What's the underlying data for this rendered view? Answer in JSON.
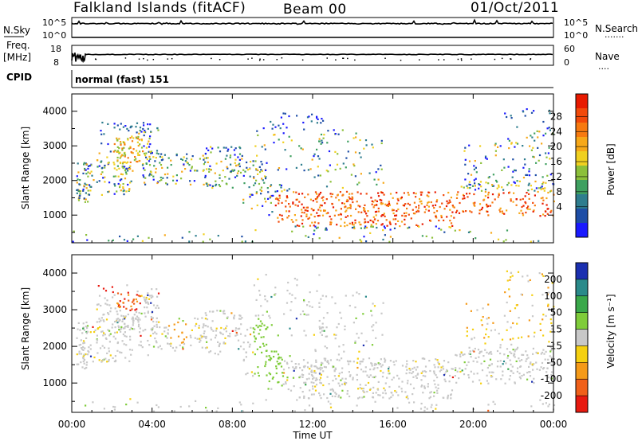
{
  "header": {
    "title": "Falkland Islands (fitACF)",
    "beam": "Beam 00",
    "date": "01/Oct/2011"
  },
  "strips": {
    "nsky_label": "N.Sky",
    "nsearch_label": "N.Search",
    "nsearch_dots": "·······",
    "freq_label_line1": "Freq.",
    "freq_label_line2": "[MHz]",
    "nave_label": "Nave",
    "nave_dots": "····",
    "cpid_label": "CPID",
    "cpid_value": "normal (fast) 151",
    "left_ticks_nsky": [
      "10^5",
      "10^0"
    ],
    "right_ticks_nsky": [
      "10^5",
      "10^0"
    ],
    "left_ticks_freq": [
      "18",
      "8"
    ],
    "right_ticks_nave": [
      "60",
      "0"
    ]
  },
  "chart_data": [
    {
      "type": "heatmap",
      "name": "power",
      "ylabel": "Slant Range [km]",
      "ylim": [
        200,
        4500
      ],
      "yticks": [
        "1000",
        "2000",
        "3000",
        "4000"
      ],
      "colorbar_label": "Power [dB]",
      "colorbar_ticks": [
        "4",
        "8",
        "12",
        "16",
        "20",
        "24",
        "28"
      ],
      "colors": [
        "#1a1aff",
        "#1e4ea6",
        "#2e7d8e",
        "#3fa060",
        "#8cc03a",
        "#f0d020",
        "#f7a818",
        "#f77a10",
        "#f24a0a",
        "#e81a00"
      ]
    },
    {
      "type": "heatmap",
      "name": "velocity",
      "ylabel": "Slant Range [km]",
      "ylim": [
        200,
        4500
      ],
      "yticks": [
        "1000",
        "2000",
        "3000",
        "4000"
      ],
      "colorbar_label": "Velocity [m s⁻¹]",
      "colorbar_ticks": [
        "200",
        "100",
        "50",
        "15",
        "-15",
        "-50",
        "-100",
        "-200"
      ],
      "colors": [
        "#1b2fb0",
        "#2a8a8a",
        "#3aa84a",
        "#7fcc3a",
        "#c8c8c8",
        "#f5d010",
        "#f59a18",
        "#f0601a",
        "#e81a10"
      ]
    }
  ],
  "xaxis": {
    "label": "Time UT",
    "ticks": [
      "00:00",
      "04:00",
      "08:00",
      "12:00",
      "16:00",
      "20:00",
      "00:00"
    ]
  }
}
